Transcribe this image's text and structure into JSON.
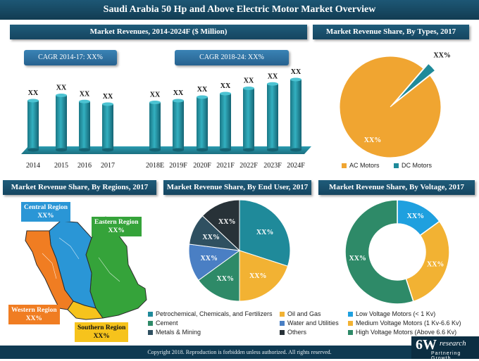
{
  "title": "Saudi Arabia 50 Hp and Above Electric Motor Market Overview",
  "footer": "Copyright 2018. Reproduction is forbidden unless authorized. All rights reserved.",
  "logo": {
    "main": "6W",
    "sup": "research",
    "tagline": "Partnering Growth"
  },
  "colors": {
    "banner": "#1b4f6b",
    "teal_bar": "#1f8a9a",
    "orange": "#f0a531",
    "teal": "#1f8a9a"
  },
  "sections": {
    "revenues": "Market Revenues, 2014-2024F ($ Million)",
    "types": "Market Revenue Share, By Types, 2017",
    "regions": "Market Revenue Share, By Regions, 2017",
    "end_user": "Market Revenue Share, By End User, 2017",
    "voltage": "Market Revenue Share, By Voltage, 2017"
  },
  "cagr": {
    "first": "CAGR 2014-17: XX%",
    "second": "CAGR 2018-24: XX%"
  },
  "map_labels": {
    "central": {
      "name": "Central Region",
      "value": "XX%"
    },
    "eastern": {
      "name": "Eastern Region",
      "value": "XX%"
    },
    "western": {
      "name": "Western Region",
      "value": "XX%"
    },
    "southern": {
      "name": "Southern Region",
      "value": "XX%"
    }
  },
  "chart_data": [
    {
      "type": "bar",
      "title": "Market Revenues, 2014-2024F ($ Million)",
      "categories": [
        "2014",
        "2015",
        "2016",
        "2017",
        "2018E",
        "2019F",
        "2020F",
        "2021F",
        "2022F",
        "2023F",
        "2024F"
      ],
      "values": [
        56,
        62,
        55,
        52,
        54,
        56,
        60,
        64,
        70,
        75,
        80
      ],
      "data_labels": [
        "XX",
        "XX",
        "XX",
        "XX",
        "XX",
        "XX",
        "XX",
        "XX",
        "XX",
        "XX",
        "XX"
      ],
      "ylim": [
        0,
        100
      ],
      "grid": false
    },
    {
      "type": "pie",
      "title": "Market Revenue Share, By Types, 2017",
      "labels": [
        "AC Motors",
        "DC Motors"
      ],
      "values": [
        97,
        3
      ],
      "data_labels": [
        "XX%",
        "XX%"
      ],
      "colors": [
        "#f0a531",
        "#1f8a9a"
      ],
      "legend": "bottom"
    },
    {
      "type": "pie",
      "title": "Market Revenue Share, By End User, 2017",
      "labels": [
        "Petrochemical, Chemicals, and Fertilizers",
        "Oil and Gas",
        "Cement",
        "Water and Utilities",
        "Metals & Mining",
        "Others"
      ],
      "values": [
        30,
        20,
        15,
        12,
        10,
        13
      ],
      "data_labels": [
        "XX%",
        "XX%",
        "XX%",
        "XX%",
        "XX%",
        "XX%"
      ],
      "colors": [
        "#1f8a9a",
        "#f2b233",
        "#2e8a68",
        "#4a7fc4",
        "#2f5061",
        "#283238"
      ],
      "legend": "bottom"
    },
    {
      "type": "pie",
      "subtype": "donut",
      "title": "Market Revenue Share, By Voltage, 2017",
      "labels": [
        "Low Voltage Motors (< 1 Kv)",
        "Medium Voltage Motors (1 Kv-6.6 Kv)",
        "High Voltage Motors (Above 6.6 Kv)"
      ],
      "values": [
        15,
        30,
        55
      ],
      "data_labels": [
        "XX%",
        "XX%",
        "XX%"
      ],
      "colors": [
        "#1fa0df",
        "#f2b233",
        "#2e8a68"
      ],
      "legend": "bottom"
    }
  ]
}
